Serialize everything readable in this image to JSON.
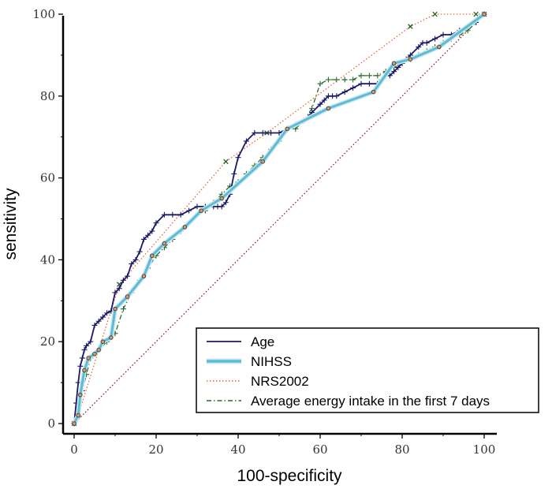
{
  "chart_data": {
    "type": "line",
    "xlabel": "100-specificity",
    "ylabel": "sensitivity",
    "xlim": [
      0,
      100
    ],
    "ylim": [
      0,
      100
    ],
    "x_ticks": [
      "0",
      "20",
      "40",
      "60",
      "80",
      "100"
    ],
    "y_ticks": [
      "0",
      "20",
      "40",
      "60",
      "80",
      "100"
    ],
    "grid": false,
    "legend_position": "bottom-right",
    "series": [
      {
        "name": "Age",
        "color": "#1a1a66",
        "style": "solid",
        "marker": "plus",
        "x": [
          0,
          0.5,
          1,
          1.5,
          2,
          2.5,
          3,
          4,
          5,
          6,
          7,
          8,
          9,
          10,
          11,
          12,
          13,
          14,
          15,
          16,
          17,
          18,
          19,
          20,
          22,
          24,
          26,
          28,
          30,
          32,
          34,
          35,
          36,
          37,
          38,
          39,
          40,
          42,
          44,
          46,
          48,
          50,
          52,
          54,
          56,
          58,
          60,
          61,
          62,
          63,
          64,
          66,
          68,
          70,
          72,
          74,
          75,
          76,
          77,
          78,
          79,
          80,
          81,
          82,
          84,
          85,
          86,
          88,
          90,
          92,
          94,
          96,
          98,
          100
        ],
        "y": [
          0,
          5,
          10,
          14,
          16,
          18,
          19,
          20,
          24,
          25,
          26,
          27,
          27.5,
          32,
          33,
          35,
          36,
          39,
          40,
          42,
          45,
          46,
          47,
          49,
          51,
          51,
          51,
          52,
          53,
          53,
          53,
          53,
          53,
          54,
          56,
          61,
          65,
          69,
          71,
          71,
          71,
          71,
          72,
          73,
          74,
          76,
          78,
          79,
          80,
          80,
          80,
          81,
          82,
          83,
          83,
          83,
          84,
          85,
          85,
          86,
          87,
          88,
          89,
          90,
          92,
          93,
          93,
          94,
          95,
          95,
          96,
          97,
          98,
          100
        ]
      },
      {
        "name": "NIHSS",
        "color": "#5bbcd6",
        "style": "solid",
        "marker": "dot",
        "x": [
          0,
          1,
          1.5,
          2.5,
          3.5,
          5,
          6,
          7,
          9,
          10,
          13,
          17,
          19,
          22,
          27,
          31,
          36,
          46,
          52,
          62,
          73,
          78,
          82,
          89,
          100
        ],
        "y": [
          0,
          2,
          7,
          13,
          16,
          17,
          18,
          20,
          21,
          28,
          31,
          36,
          41,
          44,
          48,
          52,
          55,
          64,
          72,
          77,
          81,
          88,
          89,
          92,
          100
        ]
      },
      {
        "name": "NRS2002",
        "color": "#e8683a",
        "style": "dotted",
        "marker": "x",
        "x": [
          0,
          1,
          11,
          37,
          47,
          82,
          88,
          98,
          100
        ],
        "y": [
          0,
          2,
          34,
          64,
          71,
          97,
          100,
          100,
          100
        ]
      },
      {
        "name": "Average energy intake in the first 7 days",
        "color": "#2a6a2a",
        "style": "dashdot",
        "marker": "plus",
        "x": [
          0,
          1,
          2,
          3,
          4,
          6,
          8,
          10,
          12,
          14,
          16,
          18,
          20,
          22,
          24,
          26,
          28,
          30,
          32,
          34,
          36,
          38,
          40,
          42,
          44,
          46,
          48,
          50,
          52,
          54,
          56,
          58,
          60,
          62,
          64,
          66,
          68,
          70,
          72,
          74,
          76,
          78,
          80,
          82,
          84,
          86,
          88,
          90,
          92,
          94,
          96,
          98,
          100
        ],
        "y": [
          0,
          4,
          8,
          12,
          16,
          18,
          20,
          22,
          28,
          32,
          35,
          38,
          41,
          43,
          45,
          47,
          49,
          51,
          52,
          54,
          56,
          58,
          59,
          61,
          63,
          65,
          67,
          69,
          72,
          72,
          74,
          77,
          83,
          84,
          84,
          84,
          84,
          85,
          85,
          85,
          86,
          87,
          88,
          89,
          90,
          91,
          92,
          93,
          94,
          95,
          96,
          98,
          100
        ]
      },
      {
        "name": "",
        "color": "#8b1a3a",
        "style": "dotted",
        "marker": "none",
        "x": [
          0,
          100
        ],
        "y": [
          0,
          100
        ]
      }
    ]
  }
}
